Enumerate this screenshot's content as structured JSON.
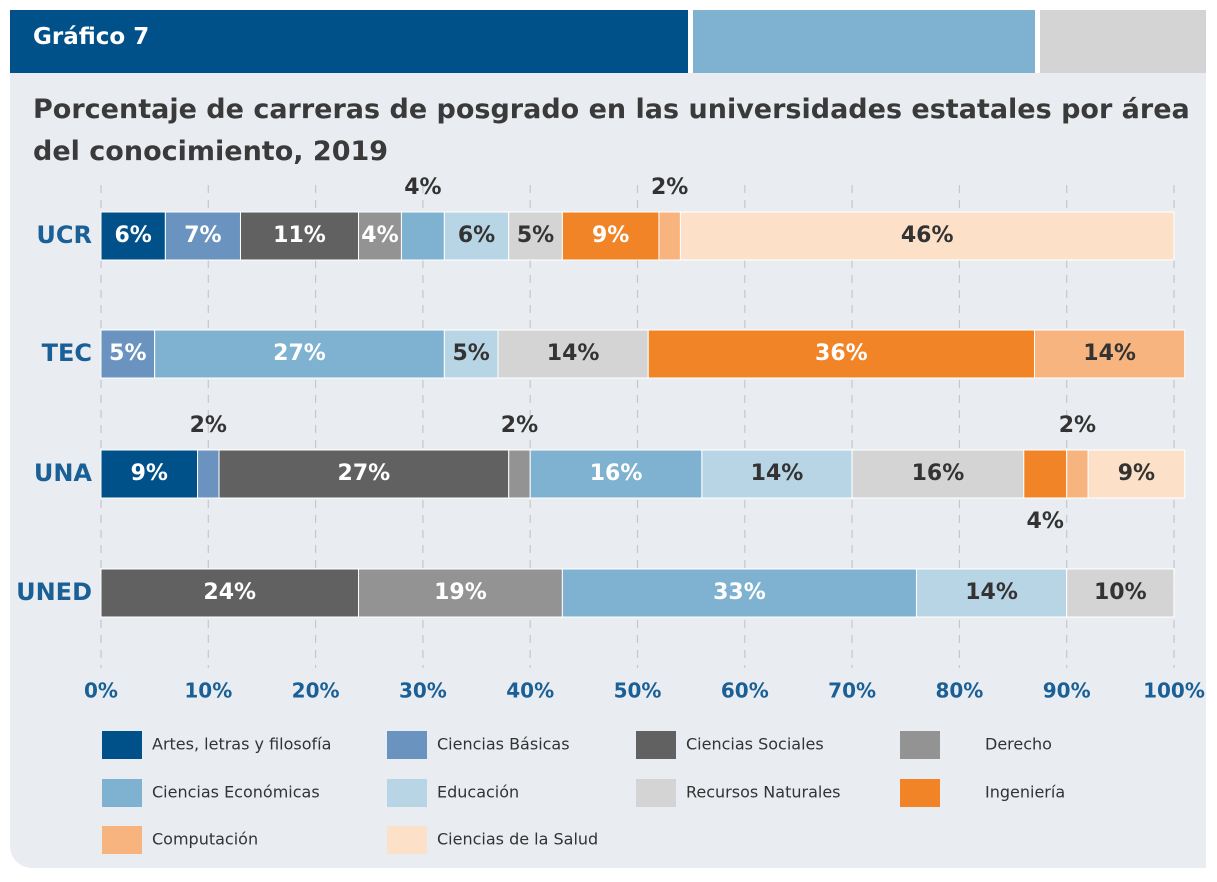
{
  "chart_data": {
    "type": "bar",
    "orientation": "horizontal",
    "stacked": true,
    "header": "Gráfico 7",
    "title": "Porcentaje de carreras de posgrado en las universidades estatales por área del conocimiento, 2019",
    "categories": [
      "UCR",
      "TEC",
      "UNA",
      "UNED"
    ],
    "series": [
      {
        "name": "Artes, letras y filosofía",
        "color": "#00508a",
        "values": [
          6,
          0,
          9,
          0
        ],
        "value_labels": [
          "6%",
          null,
          "9%",
          null
        ]
      },
      {
        "name": "Ciencias Básicas",
        "color": "#6a93c0",
        "values": [
          7,
          5,
          2,
          0
        ],
        "value_labels": [
          "7%",
          "5%",
          "2%",
          null
        ]
      },
      {
        "name": "Ciencias Sociales",
        "color": "#616161",
        "values": [
          11,
          0,
          27,
          24
        ],
        "value_labels": [
          "11%",
          null,
          "27%",
          "24%"
        ]
      },
      {
        "name": "Derecho",
        "color": "#939393",
        "values": [
          4,
          0,
          2,
          19
        ],
        "value_labels": [
          "4%",
          null,
          "2%",
          "19%"
        ]
      },
      {
        "name": "Ciencias Económicas",
        "color": "#7fb2d0",
        "values": [
          4,
          27,
          16,
          33
        ],
        "value_labels": [
          "4%",
          "27%",
          "16%",
          "33%"
        ]
      },
      {
        "name": "Educación",
        "color": "#b8d5e6",
        "values": [
          6,
          5,
          14,
          14
        ],
        "value_labels": [
          "6%",
          "5%",
          "14%",
          "14%"
        ]
      },
      {
        "name": "Recursos Naturales",
        "color": "#d4d4d4",
        "values": [
          5,
          14,
          16,
          10
        ],
        "value_labels": [
          "5%",
          "14%",
          "16%",
          "10%"
        ]
      },
      {
        "name": "Ingeniería",
        "color": "#f08427",
        "values": [
          9,
          36,
          4,
          0
        ],
        "value_labels": [
          "9%",
          "36%",
          "4%",
          null
        ]
      },
      {
        "name": "Computación",
        "color": "#f8b47e",
        "values": [
          2,
          14,
          2,
          0
        ],
        "value_labels": [
          "2%",
          "14%",
          "2%",
          null
        ]
      },
      {
        "name": "Ciencias de la Salud",
        "color": "#fde0c8",
        "values": [
          46,
          0,
          9,
          0
        ],
        "value_labels": [
          "46%",
          null,
          "9%",
          null
        ]
      }
    ],
    "xlim": [
      0,
      100
    ],
    "xticks": [
      {
        "value": 0,
        "label": "0%"
      },
      {
        "value": 10,
        "label": "10%"
      },
      {
        "value": 20,
        "label": "20%"
      },
      {
        "value": 30,
        "label": "30%"
      },
      {
        "value": 40,
        "label": "40%"
      },
      {
        "value": 50,
        "label": "50%"
      },
      {
        "value": 60,
        "label": "60%"
      },
      {
        "value": 70,
        "label": "70%"
      },
      {
        "value": 80,
        "label": "80%"
      },
      {
        "value": 90,
        "label": "90%"
      },
      {
        "value": 100,
        "label": "100%"
      }
    ],
    "grid": true
  }
}
